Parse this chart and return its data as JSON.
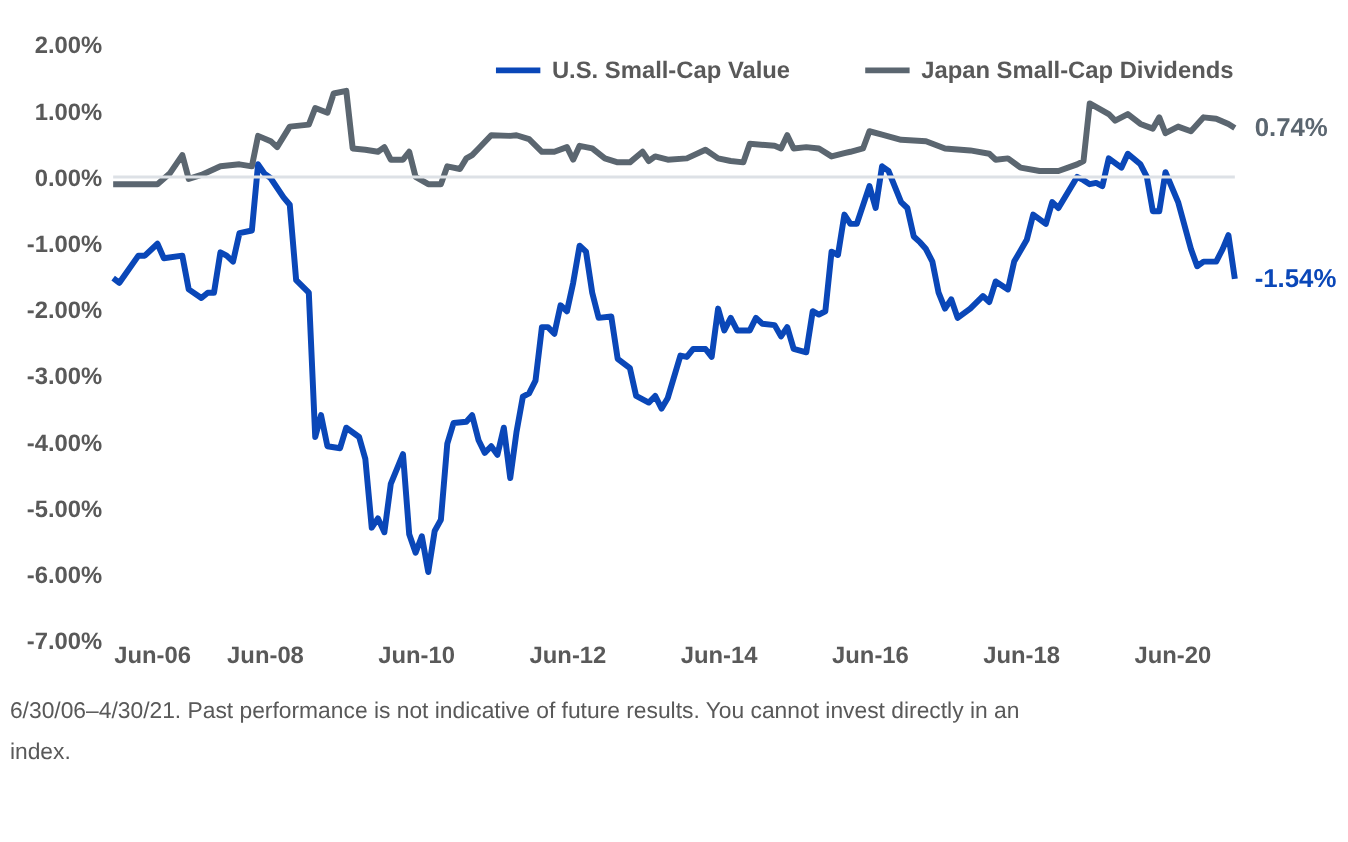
{
  "chart_data": {
    "type": "line",
    "ylim": [
      -7,
      2
    ],
    "yticks": [
      {
        "value": 2,
        "label": "2.00%"
      },
      {
        "value": 1,
        "label": "1.00%"
      },
      {
        "value": 0,
        "label": "0.00%"
      },
      {
        "value": -1,
        "label": "-1.00%"
      },
      {
        "value": -2,
        "label": "-2.00%"
      },
      {
        "value": -3,
        "label": "-3.00%"
      },
      {
        "value": -4,
        "label": "-4.00%"
      },
      {
        "value": -5,
        "label": "-5.00%"
      },
      {
        "value": -6,
        "label": "-6.00%"
      },
      {
        "value": -7,
        "label": "-7.00%"
      }
    ],
    "xlim": [
      "2006-06",
      "2021-04"
    ],
    "xticks": [
      {
        "value": "2006-06",
        "label": "Jun-06"
      },
      {
        "value": "2008-06",
        "label": "Jun-08"
      },
      {
        "value": "2010-06",
        "label": "Jun-10"
      },
      {
        "value": "2012-06",
        "label": "Jun-12"
      },
      {
        "value": "2014-06",
        "label": "Jun-14"
      },
      {
        "value": "2016-06",
        "label": "Jun-16"
      },
      {
        "value": "2018-06",
        "label": "Jun-18"
      },
      {
        "value": "2020-06",
        "label": "Jun-20"
      }
    ],
    "grid": false,
    "legend": "top right",
    "marker": "none",
    "line_style": "solid",
    "ref_lines": [
      {
        "axis": "y",
        "value": 0,
        "color": "#dde1e6"
      }
    ],
    "series": [
      {
        "name": "U.S. Small-Cap Value",
        "color": "#0a47b8",
        "x": [
          "2006-06",
          "2006-07",
          "2006-10",
          "2006-11",
          "2007-01",
          "2007-02",
          "2007-05",
          "2007-06",
          "2007-08",
          "2007-09",
          "2007-10",
          "2007-11",
          "2007-12",
          "2008-01",
          "2008-02",
          "2008-04",
          "2008-05",
          "2008-06",
          "2008-07",
          "2008-09",
          "2008-10",
          "2008-11",
          "2009-01",
          "2009-02",
          "2009-03",
          "2009-04",
          "2009-06",
          "2009-07",
          "2009-09",
          "2009-10",
          "2009-11",
          "2009-12",
          "2010-01",
          "2010-02",
          "2010-04",
          "2010-05",
          "2010-06",
          "2010-07",
          "2010-08",
          "2010-09",
          "2010-10",
          "2010-11",
          "2010-12",
          "2011-02",
          "2011-03",
          "2011-04",
          "2011-05",
          "2011-06",
          "2011-07",
          "2011-08",
          "2011-09",
          "2011-10",
          "2011-11",
          "2011-12",
          "2012-01",
          "2012-02",
          "2012-03",
          "2012-04",
          "2012-05",
          "2012-06",
          "2012-07",
          "2012-08",
          "2012-09",
          "2012-10",
          "2012-11",
          "2013-01",
          "2013-02",
          "2013-04",
          "2013-05",
          "2013-07",
          "2013-08",
          "2013-09",
          "2013-10",
          "2013-12",
          "2014-01",
          "2014-02",
          "2014-04",
          "2014-05",
          "2014-06",
          "2014-07",
          "2014-08",
          "2014-09",
          "2014-11",
          "2014-12",
          "2015-01",
          "2015-03",
          "2015-04",
          "2015-05",
          "2015-06",
          "2015-08",
          "2015-09",
          "2015-10",
          "2015-11",
          "2015-12",
          "2016-01",
          "2016-02",
          "2016-03",
          "2016-04",
          "2016-06",
          "2016-07",
          "2016-08",
          "2016-09",
          "2016-11",
          "2016-12",
          "2017-01",
          "2017-02",
          "2017-03",
          "2017-04",
          "2017-05",
          "2017-06",
          "2017-07",
          "2017-08",
          "2017-10",
          "2017-12",
          "2018-01",
          "2018-02",
          "2018-04",
          "2018-05",
          "2018-07",
          "2018-08",
          "2018-10",
          "2018-11",
          "2018-12",
          "2019-03",
          "2019-04",
          "2019-05",
          "2019-06",
          "2019-07",
          "2019-08",
          "2019-10",
          "2019-11",
          "2020-01",
          "2020-02",
          "2020-03",
          "2020-04",
          "2020-05",
          "2020-07",
          "2020-09",
          "2020-10",
          "2020-11",
          "2021-01",
          "2021-02",
          "2021-03",
          "2021-04"
        ],
        "values": [
          -1.53,
          -1.6,
          -1.19,
          -1.19,
          -1.01,
          -1.23,
          -1.19,
          -1.7,
          -1.83,
          -1.75,
          -1.75,
          -1.14,
          -1.19,
          -1.28,
          -0.85,
          -0.81,
          0.19,
          0.05,
          -0.02,
          -0.31,
          -0.42,
          -1.56,
          -1.75,
          -3.93,
          -3.6,
          -4.07,
          -4.1,
          -3.79,
          -3.93,
          -4.26,
          -5.3,
          -5.16,
          -5.37,
          -4.64,
          -4.19,
          -5.4,
          -5.68,
          -5.43,
          -5.97,
          -5.35,
          -5.18,
          -4.03,
          -3.72,
          -3.7,
          -3.6,
          -3.98,
          -4.17,
          -4.07,
          -4.2,
          -3.79,
          -4.55,
          -3.86,
          -3.32,
          -3.27,
          -3.08,
          -2.27,
          -2.27,
          -2.37,
          -1.94,
          -2.03,
          -1.6,
          -1.04,
          -1.13,
          -1.75,
          -2.13,
          -2.11,
          -2.75,
          -2.89,
          -3.31,
          -3.41,
          -3.31,
          -3.5,
          -3.34,
          -2.7,
          -2.72,
          -2.6,
          -2.6,
          -2.72,
          -1.99,
          -2.32,
          -2.13,
          -2.32,
          -2.32,
          -2.13,
          -2.22,
          -2.24,
          -2.41,
          -2.27,
          -2.6,
          -2.65,
          -2.03,
          -2.08,
          -2.03,
          -1.13,
          -1.18,
          -0.57,
          -0.71,
          -0.71,
          -0.14,
          -0.47,
          0.16,
          0.09,
          -0.38,
          -0.47,
          -0.9,
          -0.99,
          -1.09,
          -1.28,
          -1.75,
          -1.99,
          -1.85,
          -2.13,
          -1.99,
          -1.8,
          -1.89,
          -1.58,
          -1.7,
          -1.28,
          -0.95,
          -0.57,
          -0.71,
          -0.38,
          -0.47,
          0.0,
          -0.05,
          -0.11,
          -0.09,
          -0.14,
          0.28,
          0.14,
          0.35,
          0.19,
          0.0,
          -0.52,
          -0.52,
          0.07,
          -0.38,
          -1.09,
          -1.35,
          -1.28,
          -1.28,
          -1.09,
          -0.88,
          -1.54
        ]
      },
      {
        "name": "Japan Small-Cap Dividends",
        "color": "#5b6670",
        "x": [
          "2006-06",
          "2007-01",
          "2007-03",
          "2007-05",
          "2007-06",
          "2007-08",
          "2007-11",
          "2008-02",
          "2008-04",
          "2008-05",
          "2008-07",
          "2008-08",
          "2008-10",
          "2009-01",
          "2009-02",
          "2009-04",
          "2009-05",
          "2009-07",
          "2009-08",
          "2009-10",
          "2009-12",
          "2010-01",
          "2010-02",
          "2010-04",
          "2010-05",
          "2010-06",
          "2010-08",
          "2010-10",
          "2010-11",
          "2011-01",
          "2011-02",
          "2011-03",
          "2011-04",
          "2011-06",
          "2011-09",
          "2011-10",
          "2011-12",
          "2012-02",
          "2012-04",
          "2012-06",
          "2012-07",
          "2012-08",
          "2012-10",
          "2012-12",
          "2013-02",
          "2013-04",
          "2013-06",
          "2013-07",
          "2013-08",
          "2013-10",
          "2014-01",
          "2014-04",
          "2014-06",
          "2014-08",
          "2014-10",
          "2014-11",
          "2015-03",
          "2015-04",
          "2015-05",
          "2015-06",
          "2015-08",
          "2015-10",
          "2015-12",
          "2016-02",
          "2016-03",
          "2016-05",
          "2016-06",
          "2016-08",
          "2016-11",
          "2017-03",
          "2017-06",
          "2017-10",
          "2018-01",
          "2018-02",
          "2018-04",
          "2018-06",
          "2018-09",
          "2018-12",
          "2019-03",
          "2019-04",
          "2019-05",
          "2019-08",
          "2019-09",
          "2019-11",
          "2020-01",
          "2020-03",
          "2020-04",
          "2020-05",
          "2020-07",
          "2020-09",
          "2020-11",
          "2021-01",
          "2021-03",
          "2021-04"
        ],
        "values": [
          -0.11,
          -0.11,
          0.05,
          0.33,
          -0.03,
          0.03,
          0.16,
          0.19,
          0.16,
          0.62,
          0.54,
          0.45,
          0.76,
          0.79,
          1.04,
          0.97,
          1.26,
          1.3,
          0.43,
          0.41,
          0.38,
          0.45,
          0.26,
          0.26,
          0.38,
          0.0,
          -0.11,
          -0.11,
          0.16,
          0.12,
          0.28,
          0.33,
          0.43,
          0.63,
          0.62,
          0.63,
          0.57,
          0.38,
          0.38,
          0.45,
          0.26,
          0.47,
          0.43,
          0.28,
          0.22,
          0.22,
          0.38,
          0.24,
          0.31,
          0.26,
          0.28,
          0.41,
          0.28,
          0.24,
          0.22,
          0.5,
          0.47,
          0.43,
          0.63,
          0.43,
          0.45,
          0.43,
          0.31,
          0.36,
          0.38,
          0.43,
          0.69,
          0.64,
          0.56,
          0.54,
          0.43,
          0.4,
          0.35,
          0.26,
          0.28,
          0.14,
          0.09,
          0.09,
          0.19,
          0.24,
          1.11,
          0.95,
          0.85,
          0.95,
          0.8,
          0.73,
          0.9,
          0.66,
          0.76,
          0.69,
          0.9,
          0.88,
          0.8,
          0.74
        ]
      }
    ],
    "annotations": [
      {
        "text": "0.74%",
        "x": "2021-04",
        "y": 0.74
      },
      {
        "text": "-1.54%",
        "x": "2021-04",
        "y": -1.54
      },
      "6/30/06–4/30/21. Past performance is not indicative of future results. You cannot invest directly in an index."
    ]
  }
}
